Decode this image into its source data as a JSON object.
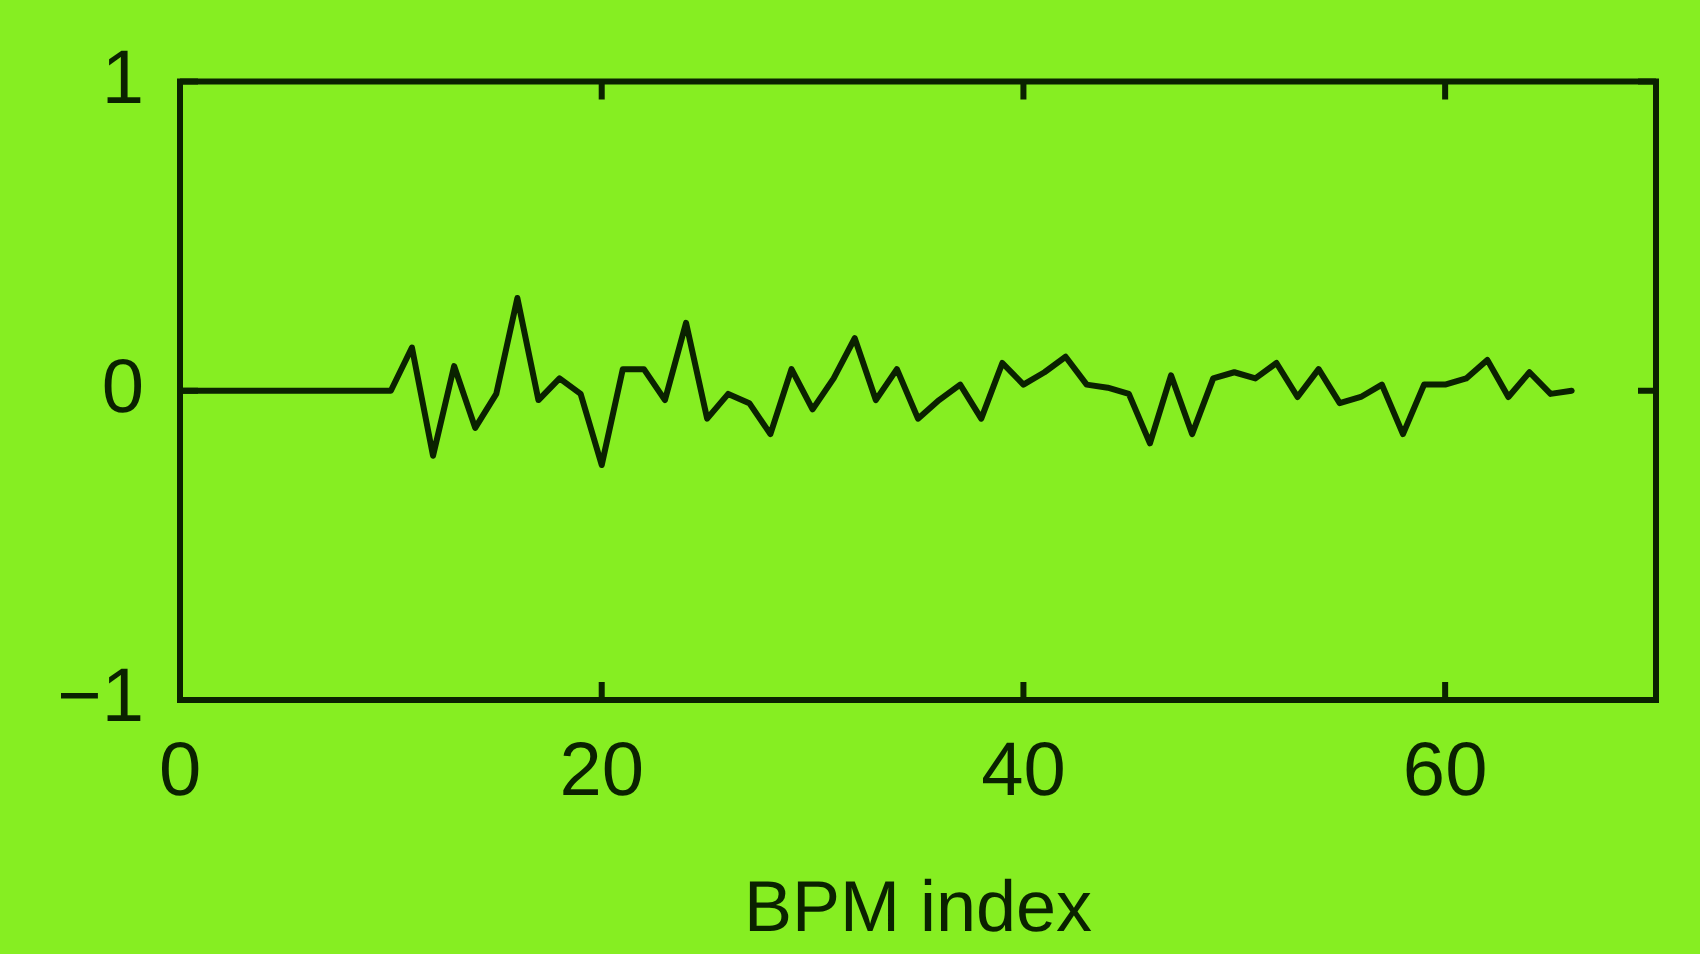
{
  "chart_data": {
    "type": "line",
    "xlabel": "BPM index",
    "x": [
      0,
      1,
      2,
      3,
      4,
      5,
      6,
      7,
      8,
      9,
      10,
      11,
      12,
      13,
      14,
      15,
      16,
      17,
      18,
      19,
      20,
      21,
      22,
      23,
      24,
      25,
      26,
      27,
      28,
      29,
      30,
      31,
      32,
      33,
      34,
      35,
      36,
      37,
      38,
      39,
      40,
      41,
      42,
      43,
      44,
      45,
      46,
      47,
      48,
      49,
      50,
      51,
      52,
      53,
      54,
      55,
      56,
      57,
      58,
      59,
      60,
      61,
      62,
      63,
      64,
      65,
      66
    ],
    "series": [
      {
        "color": "#0a2200",
        "values": [
          0,
          0,
          0,
          0,
          0,
          0,
          0,
          0,
          0,
          0,
          0,
          0.14,
          -0.21,
          0.08,
          -0.12,
          -0.01,
          0.3,
          -0.03,
          0.04,
          -0.01,
          -0.24,
          0.07,
          0.07,
          -0.03,
          0.22,
          -0.09,
          -0.01,
          -0.04,
          -0.14,
          0.07,
          -0.06,
          0.04,
          0.17,
          -0.03,
          0.07,
          -0.09,
          -0.03,
          0.02,
          -0.09,
          0.09,
          0.02,
          0.06,
          0.11,
          0.02,
          0.01,
          -0.01,
          -0.17,
          0.05,
          -0.14,
          0.04,
          0.06,
          0.04,
          0.09,
          -0.02,
          0.07,
          -0.04,
          -0.02,
          0.02,
          -0.14,
          0.02,
          0.02,
          0.04,
          0.1,
          -0.02,
          0.06,
          -0.01,
          0
        ]
      }
    ],
    "xlim": [
      0,
      70
    ],
    "xticks": [
      0,
      20,
      40,
      60
    ],
    "ylim": [
      -1,
      1
    ],
    "yticks": [
      {
        "value": -1,
        "label": "−1"
      },
      0,
      1
    ],
    "legend": false,
    "marker": "none",
    "line_style": "solid"
  }
}
